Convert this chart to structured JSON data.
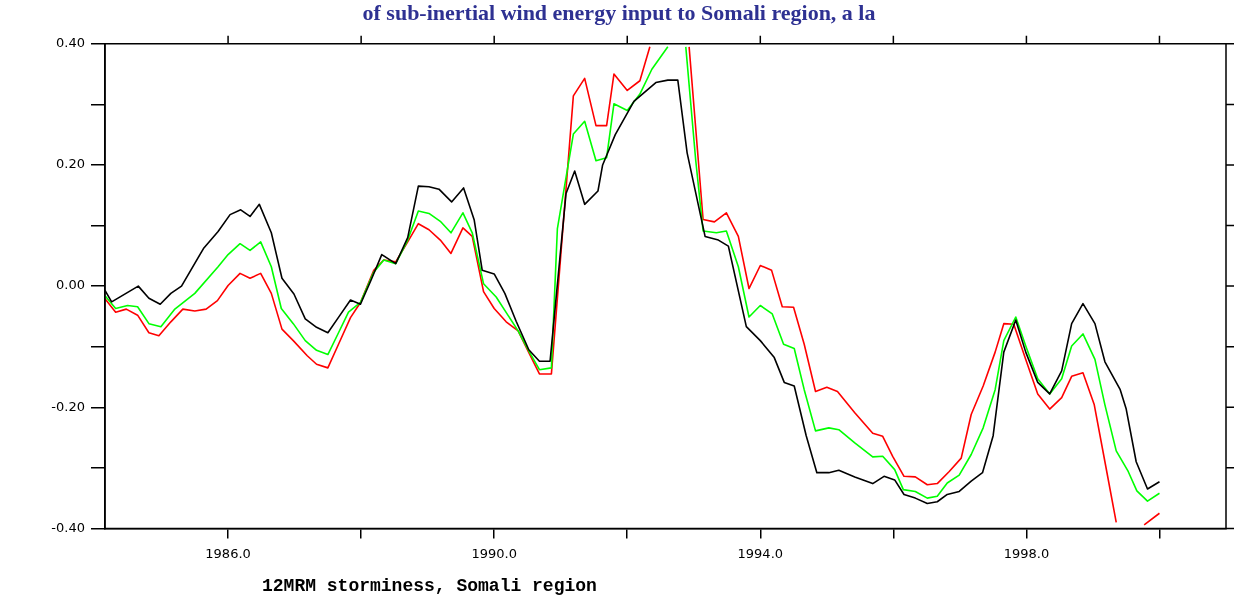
{
  "chart_data": {
    "type": "line",
    "title": "of sub-inertial wind energy input to Somali region, a la",
    "xlabel": "12MRM storminess, Somali region",
    "xlim": [
      1984.15,
      2001
    ],
    "ylim": [
      -0.4,
      0.4
    ],
    "xticks": [
      {
        "value": 1986,
        "label": "1986.0"
      },
      {
        "value": 1988,
        "label": null
      },
      {
        "value": 1990,
        "label": "1990.0"
      },
      {
        "value": 1992,
        "label": null
      },
      {
        "value": 1994,
        "label": "1994.0"
      },
      {
        "value": 1996,
        "label": null
      },
      {
        "value": 1998,
        "label": "1998.0"
      },
      {
        "value": 2000,
        "label": null
      }
    ],
    "yticks": [
      {
        "value": -0.4,
        "label": "-0.40"
      },
      {
        "value": -0.3,
        "label": null
      },
      {
        "value": -0.2,
        "label": "-0.20"
      },
      {
        "value": -0.1,
        "label": null
      },
      {
        "value": 0,
        "label": "0.00"
      },
      {
        "value": 0.1,
        "label": null
      },
      {
        "value": 0.2,
        "label": "0.20"
      },
      {
        "value": 0.3,
        "label": null
      },
      {
        "value": 0.4,
        "label": "0.40"
      }
    ],
    "grid": false,
    "legend": false,
    "marker": "none",
    "line_style": "solid",
    "series": [
      {
        "color": "#000000",
        "x": [
          1984.15,
          1984.25,
          1984.65,
          1984.81,
          1984.98,
          1985.14,
          1985.3,
          1985.63,
          1985.85,
          1986.03,
          1986.19,
          1986.33,
          1986.47,
          1986.65,
          1986.81,
          1986.99,
          1987.16,
          1987.33,
          1987.5,
          1987.67,
          1987.84,
          1987.99,
          1988.15,
          1988.31,
          1988.52,
          1988.7,
          1988.86,
          1989.02,
          1989.17,
          1989.36,
          1989.54,
          1989.7,
          1989.82,
          1990.0,
          1990.16,
          1990.33,
          1990.52,
          1990.68,
          1990.84,
          1991.08,
          1991.21,
          1991.36,
          1991.56,
          1991.63,
          1991.82,
          1992.1,
          1992.43,
          1992.61,
          1992.76,
          1992.9,
          1993.17,
          1993.37,
          1993.52,
          1993.79,
          1994.0,
          1994.21,
          1994.36,
          1994.51,
          1994.69,
          1994.85,
          1995.03,
          1995.18,
          1995.42,
          1995.69,
          1995.86,
          1996.02,
          1996.16,
          1996.33,
          1996.51,
          1996.66,
          1996.81,
          1996.99,
          1997.17,
          1997.34,
          1997.5,
          1997.66,
          1997.84,
          1997.99,
          1998.17,
          1998.35,
          1998.53,
          1998.68,
          1998.85,
          1999.03,
          1999.18,
          1999.41,
          1999.5,
          1999.65,
          1999.82,
          2000.0
        ],
        "values": [
          -0.007,
          -0.026,
          0.0,
          -0.02,
          -0.03,
          -0.012,
          0.0,
          0.062,
          0.09,
          0.118,
          0.126,
          0.115,
          0.135,
          0.088,
          0.013,
          -0.013,
          -0.054,
          -0.068,
          -0.077,
          -0.05,
          -0.023,
          -0.03,
          0.01,
          0.052,
          0.037,
          0.08,
          0.165,
          0.164,
          0.16,
          0.139,
          0.162,
          0.109,
          0.026,
          0.02,
          -0.012,
          -0.058,
          -0.105,
          -0.124,
          -0.124,
          0.153,
          0.19,
          0.135,
          0.157,
          0.2,
          0.25,
          0.305,
          0.336,
          0.34,
          0.34,
          0.22,
          0.082,
          0.076,
          0.066,
          -0.067,
          -0.09,
          -0.118,
          -0.159,
          -0.165,
          -0.247,
          -0.308,
          -0.308,
          -0.304,
          -0.315,
          -0.326,
          -0.314,
          -0.32,
          -0.344,
          -0.35,
          -0.359,
          -0.356,
          -0.344,
          -0.339,
          -0.322,
          -0.308,
          -0.247,
          -0.109,
          -0.056,
          -0.109,
          -0.159,
          -0.178,
          -0.14,
          -0.062,
          -0.029,
          -0.062,
          -0.125,
          -0.171,
          -0.203,
          -0.29,
          -0.335,
          -0.323
        ]
      },
      {
        "color": "#00ff00",
        "x": [
          1984.15,
          1984.31,
          1984.49,
          1984.64,
          1984.81,
          1984.99,
          1985.2,
          1985.5,
          1985.85,
          1986.0,
          1986.18,
          1986.33,
          1986.49,
          1986.65,
          1986.8,
          1986.98,
          1987.16,
          1987.33,
          1987.5,
          1987.66,
          1987.81,
          1987.99,
          1988.19,
          1988.34,
          1988.52,
          1988.7,
          1988.86,
          1989.02,
          1989.19,
          1989.35,
          1989.53,
          1989.67,
          1989.84,
          1990.03,
          1990.36,
          1990.53,
          1990.68,
          1990.86,
          1990.95,
          1991.19,
          1991.36,
          1991.53,
          1991.69,
          1991.8,
          1992.0,
          1992.19,
          1992.37,
          1992.61,
          1992.75,
          1992.88,
          1993.03,
          1993.14,
          1993.34,
          1993.49,
          1993.67,
          1993.83,
          1994.0,
          1994.18,
          1994.35,
          1994.51,
          1994.66,
          1994.83,
          1995.03,
          1995.18,
          1995.42,
          1995.69,
          1995.84,
          1996.02,
          1996.15,
          1996.33,
          1996.51,
          1996.66,
          1996.81,
          1996.99,
          1997.17,
          1997.35,
          1997.53,
          1997.66,
          1997.84,
          1997.99,
          1998.17,
          1998.35,
          1998.53,
          1998.68,
          1998.85,
          1999.03,
          1999.18,
          1999.35,
          1999.53,
          1999.66,
          1999.82,
          2000.0
        ],
        "values": [
          -0.016,
          -0.037,
          -0.032,
          -0.034,
          -0.062,
          -0.067,
          -0.038,
          -0.012,
          0.032,
          0.052,
          0.07,
          0.059,
          0.073,
          0.032,
          -0.037,
          -0.062,
          -0.09,
          -0.106,
          -0.113,
          -0.077,
          -0.043,
          -0.027,
          0.023,
          0.043,
          0.037,
          0.076,
          0.124,
          0.12,
          0.107,
          0.088,
          0.121,
          0.088,
          0.004,
          -0.018,
          -0.074,
          -0.109,
          -0.138,
          -0.135,
          0.095,
          0.251,
          0.272,
          0.207,
          0.212,
          0.301,
          0.29,
          0.317,
          0.358,
          0.395,
          null,
          0.395,
          0.207,
          0.091,
          0.088,
          0.091,
          0.032,
          -0.051,
          -0.032,
          -0.046,
          -0.096,
          -0.103,
          -0.171,
          -0.239,
          -0.234,
          -0.237,
          -0.259,
          -0.282,
          -0.281,
          -0.303,
          -0.336,
          -0.339,
          -0.35,
          -0.347,
          -0.325,
          -0.312,
          -0.278,
          -0.234,
          -0.171,
          -0.09,
          -0.051,
          -0.099,
          -0.153,
          -0.178,
          -0.153,
          -0.099,
          -0.079,
          -0.121,
          -0.196,
          -0.272,
          -0.306,
          -0.338,
          -0.355,
          -0.342
        ]
      },
      {
        "color": "#ff0000",
        "x": [
          1984.15,
          1984.31,
          1984.47,
          1984.64,
          1984.81,
          1984.96,
          1985.14,
          1985.32,
          1985.5,
          1985.67,
          1985.84,
          1986.0,
          1986.18,
          1986.33,
          1986.49,
          1986.65,
          1986.81,
          1986.98,
          1987.19,
          1987.33,
          1987.5,
          1987.66,
          1987.84,
          1987.99,
          1988.19,
          1988.34,
          1988.52,
          1988.7,
          1988.86,
          1989.02,
          1989.19,
          1989.35,
          1989.53,
          1989.67,
          1989.84,
          1990.0,
          1990.18,
          1990.36,
          1990.53,
          1990.68,
          1990.86,
          1991.19,
          1991.36,
          1991.53,
          1991.69,
          1991.8,
          1992.0,
          1992.19,
          1992.34,
          1992.6,
          1992.93,
          1993.14,
          1993.31,
          1993.49,
          1993.67,
          1993.83,
          1994.0,
          1994.17,
          1994.33,
          1994.5,
          1994.66,
          1994.83,
          1995.0,
          1995.16,
          1995.42,
          1995.69,
          1995.84,
          1995.99,
          1996.16,
          1996.33,
          1996.51,
          1996.66,
          1996.84,
          1997.02,
          1997.17,
          1997.35,
          1997.53,
          1997.66,
          1997.81,
          1997.99,
          1998.17,
          1998.35,
          1998.53,
          1998.68,
          1998.85,
          1999.02,
          1999.18,
          1999.35,
          1999.6,
          1999.77,
          2000.0
        ],
        "values": [
          -0.021,
          -0.043,
          -0.038,
          -0.048,
          -0.077,
          -0.082,
          -0.059,
          -0.038,
          -0.041,
          -0.038,
          -0.024,
          0.001,
          0.021,
          0.013,
          0.021,
          -0.012,
          -0.071,
          -0.09,
          -0.115,
          -0.129,
          -0.135,
          -0.096,
          -0.052,
          -0.027,
          0.026,
          0.043,
          0.04,
          0.073,
          0.103,
          0.093,
          0.076,
          0.054,
          0.096,
          0.082,
          -0.009,
          -0.037,
          -0.059,
          -0.074,
          -0.112,
          -0.145,
          -0.145,
          0.314,
          0.343,
          0.265,
          0.265,
          0.35,
          0.323,
          0.339,
          0.395,
          null,
          0.395,
          0.11,
          0.106,
          0.121,
          0.082,
          -0.004,
          0.034,
          0.026,
          -0.034,
          -0.035,
          -0.096,
          -0.174,
          -0.167,
          -0.174,
          -0.209,
          -0.243,
          -0.248,
          -0.281,
          -0.314,
          -0.315,
          -0.328,
          -0.326,
          -0.306,
          -0.284,
          -0.212,
          -0.165,
          -0.109,
          -0.062,
          -0.063,
          -0.121,
          -0.178,
          -0.203,
          -0.184,
          -0.149,
          -0.143,
          -0.196,
          -0.29,
          -0.39,
          null,
          -0.394,
          -0.375
        ]
      }
    ]
  }
}
